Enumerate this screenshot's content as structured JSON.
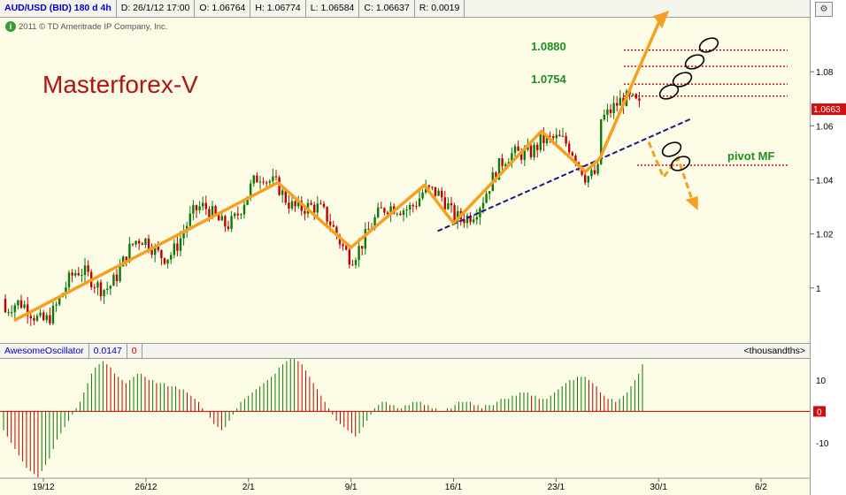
{
  "header": {
    "symbol": "AUD/USD (BID) 180 d 4h",
    "date": "D: 26/1/12 17:00",
    "open": "O: 1.06764",
    "high": "H: 1.06774",
    "low": "L: 1.06584",
    "close": "C: 1.06637",
    "range": "R: 0.0019"
  },
  "copyright": "2011 © TD Ameritrade IP Company, Inc.",
  "watermark": "Masterforex-V",
  "indicator": {
    "name": "AwesomeOscillator",
    "value": "0.0147",
    "second": "0",
    "units": "<thousandths>"
  },
  "annotations": {
    "target_upper": "1.0880",
    "target_lower": "1.0754",
    "pivot": "pivot MF"
  },
  "colors": {
    "up_candle": "#0a7a0a",
    "down_candle": "#c00000",
    "wave_line": "#f5a020",
    "trendline": "#1a1a80",
    "level_dots": "#c00000",
    "annotation_text": "#1f8f1f",
    "watermark_text": "#b01515",
    "price_badge": "#d01010"
  },
  "chart_data": [
    {
      "type": "candlestick",
      "title": "AUD/USD (BID) 180 d 4h",
      "x_ticks": [
        "19/12",
        "26/12",
        "2/1",
        "9/1",
        "16/1",
        "23/1",
        "30/1",
        "6/2"
      ],
      "y_ticks": [
        "1",
        "1.02",
        "1.04",
        "1.06",
        "1.08"
      ],
      "ylim": [
        0.98,
        1.1
      ],
      "last_price": "1.0663",
      "wave_points": [
        {
          "x": "17/12",
          "y": 0.988
        },
        {
          "x": "4/1",
          "y": 1.039
        },
        {
          "x": "9/1",
          "y": 1.015
        },
        {
          "x": "14/1",
          "y": 1.038
        },
        {
          "x": "16/1",
          "y": 1.024
        },
        {
          "x": "22/1",
          "y": 1.058
        },
        {
          "x": "25/1",
          "y": 1.043
        },
        {
          "x": "26/1",
          "y": 1.048
        },
        {
          "x": "30/1",
          "y": 1.098
        }
      ],
      "projection_down": [
        {
          "x": "28/1",
          "y": 1.054
        },
        {
          "x": "29/1",
          "y": 1.041
        },
        {
          "x": "30/1",
          "y": 1.048
        },
        {
          "x": "31/1",
          "y": 1.032
        }
      ],
      "trendline": [
        {
          "x": "16/1",
          "y": 1.023
        },
        {
          "x": "31/1",
          "y": 1.058
        }
      ],
      "levels": [
        1.088,
        1.082,
        1.0754,
        1.071,
        1.0454
      ],
      "grid": false
    },
    {
      "type": "bar",
      "title": "AwesomeOscillator",
      "y_ticks": [
        "10",
        "0",
        "-10"
      ],
      "ylim": [
        -21,
        17
      ],
      "series": [
        {
          "values": [
            -6,
            -8,
            -10,
            -12,
            -14,
            -16,
            -18,
            -19,
            -20,
            -21,
            -19,
            -17,
            -15,
            -12,
            -9,
            -7,
            -5,
            -3,
            -1,
            1,
            3,
            6,
            9,
            12,
            14,
            15,
            16,
            15,
            14,
            12,
            11,
            10,
            9,
            10,
            11,
            12,
            12,
            11,
            10,
            10,
            9,
            9,
            9,
            8,
            8,
            8,
            7,
            7,
            6,
            5,
            4,
            3,
            1,
            0,
            -2,
            -4,
            -5,
            -6,
            -5,
            -3,
            -1,
            1,
            3,
            4,
            5,
            6,
            7,
            8,
            9,
            10,
            11,
            12,
            14,
            15,
            16,
            17,
            17,
            16,
            15,
            13,
            11,
            9,
            7,
            5,
            3,
            1,
            -1,
            -3,
            -4,
            -5,
            -6,
            -7,
            -8,
            -7,
            -5,
            -3,
            -1,
            1,
            2,
            3,
            3,
            2,
            2,
            1,
            1,
            2,
            2,
            3,
            3,
            3,
            2,
            2,
            1,
            1,
            0,
            0,
            1,
            1,
            2,
            3,
            3,
            3,
            3,
            2,
            2,
            1,
            2,
            2,
            2,
            3,
            4,
            4,
            4,
            5,
            5,
            6,
            6,
            6,
            5,
            5,
            4,
            4,
            4,
            5,
            6,
            7,
            8,
            9,
            10,
            10,
            11,
            11,
            11,
            10,
            9,
            8,
            6,
            5,
            4,
            4,
            3,
            4,
            5,
            6,
            8,
            10,
            12,
            15
          ]
        }
      ]
    }
  ]
}
